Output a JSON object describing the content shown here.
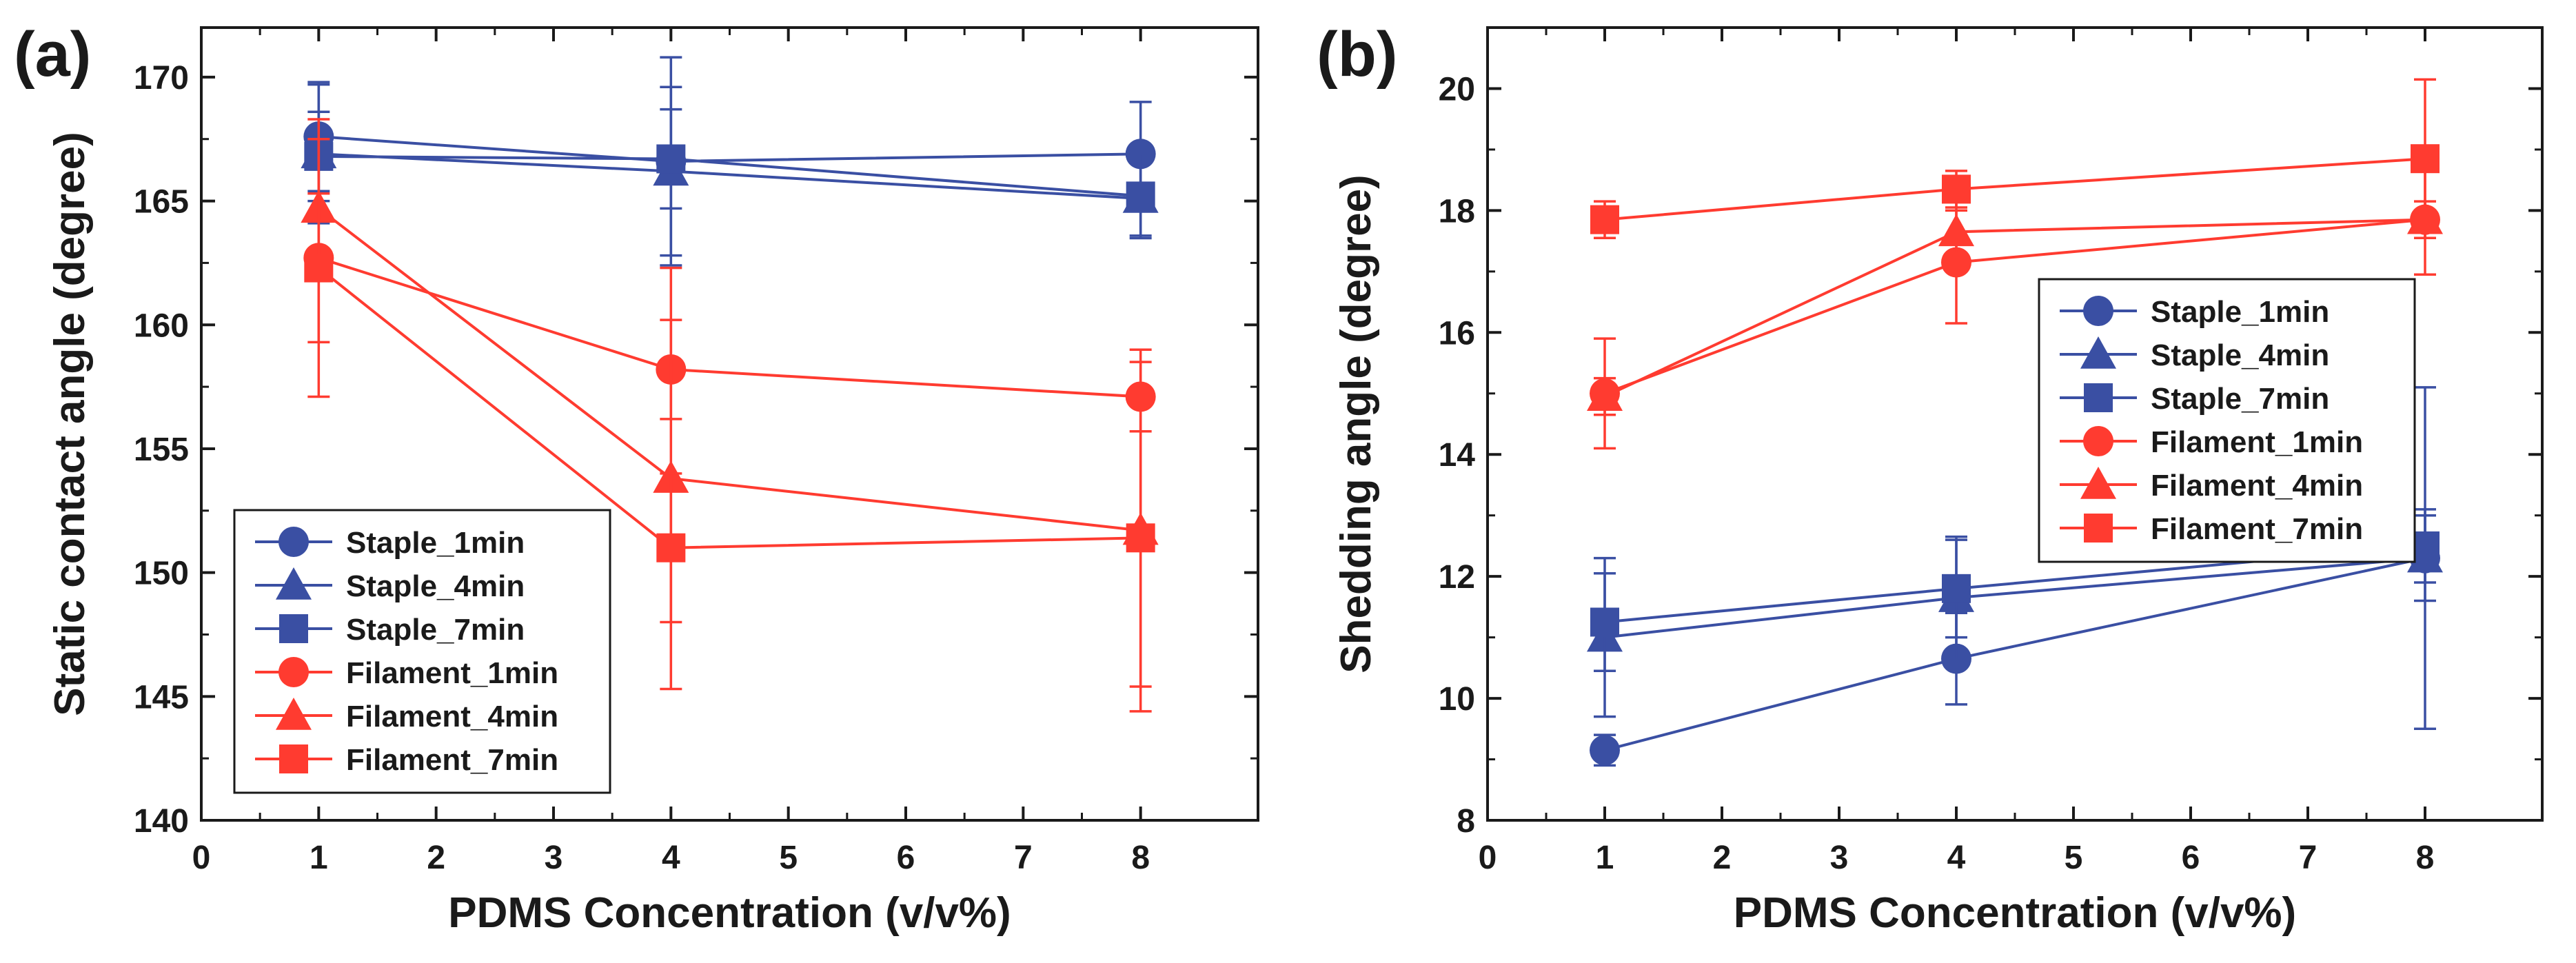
{
  "colors": {
    "staple": "#3a4fa3",
    "filament": "#ff3b30",
    "axis": "#1a1a1a",
    "errorbar": "#3a3a3a"
  },
  "chart_data": [
    {
      "type": "line",
      "panel_label": "(a)",
      "xlabel": "PDMS Concentration (v/v%)",
      "ylabel": "Static contact angle (degree)",
      "xlim": [
        0,
        9
      ],
      "ylim": [
        140,
        172
      ],
      "xticks": [
        0,
        1,
        2,
        3,
        4,
        5,
        6,
        7,
        8
      ],
      "yticks": [
        140,
        145,
        150,
        155,
        160,
        165,
        170
      ],
      "legend_position": "bottom-left",
      "x": [
        1,
        4,
        8
      ],
      "series": [
        {
          "name": "Staple_1min",
          "color": "staple",
          "marker": "circle",
          "values": [
            167.6,
            166.6,
            166.9
          ],
          "errors": [
            2.2,
            4.2,
            2.1
          ]
        },
        {
          "name": "Staple_4min",
          "color": "staple",
          "marker": "triangle",
          "values": [
            166.9,
            166.2,
            165.1
          ],
          "errors": [
            2.8,
            3.4,
            1.5
          ]
        },
        {
          "name": "Staple_7min",
          "color": "staple",
          "marker": "square",
          "values": [
            166.8,
            166.7,
            165.2
          ],
          "errors": [
            1.8,
            2.0,
            1.7
          ]
        },
        {
          "name": "Filament_1min",
          "color": "filament",
          "marker": "circle",
          "values": [
            162.7,
            158.2,
            157.1
          ],
          "errors": [
            5.6,
            2.0,
            1.4
          ]
        },
        {
          "name": "Filament_4min",
          "color": "filament",
          "marker": "triangle",
          "values": [
            164.7,
            153.8,
            151.7
          ],
          "errors": [
            2.8,
            8.5,
            7.3
          ]
        },
        {
          "name": "Filament_7min",
          "color": "filament",
          "marker": "square",
          "values": [
            162.3,
            151.0,
            151.4
          ],
          "errors": [
            3.0,
            3.0,
            6.0
          ]
        }
      ]
    },
    {
      "type": "line",
      "panel_label": "(b)",
      "xlabel": "PDMS Concentration (v/v%)",
      "ylabel": "Shedding angle (degree)",
      "xlim": [
        0,
        9
      ],
      "ylim": [
        8,
        21
      ],
      "xticks": [
        0,
        1,
        2,
        3,
        4,
        5,
        6,
        7,
        8
      ],
      "yticks": [
        8,
        10,
        12,
        14,
        16,
        18,
        20
      ],
      "legend_position": "right",
      "x": [
        1,
        4,
        8
      ],
      "series": [
        {
          "name": "Staple_1min",
          "color": "staple",
          "marker": "circle",
          "values": [
            9.15,
            10.65,
            12.3
          ],
          "errors": [
            0.25,
            0.75,
            0.7
          ]
        },
        {
          "name": "Staple_4min",
          "color": "staple",
          "marker": "triangle",
          "values": [
            11.0,
            11.65,
            12.3
          ],
          "errors": [
            1.3,
            1.0,
            2.8
          ]
        },
        {
          "name": "Staple_7min",
          "color": "staple",
          "marker": "square",
          "values": [
            11.25,
            11.8,
            12.5
          ],
          "errors": [
            0.8,
            0.8,
            0.6
          ]
        },
        {
          "name": "Filament_1min",
          "color": "filament",
          "marker": "circle",
          "values": [
            15.0,
            17.15,
            17.85
          ],
          "errors": [
            0.9,
            1.0,
            0.9
          ]
        },
        {
          "name": "Filament_4min",
          "color": "filament",
          "marker": "triangle",
          "values": [
            14.95,
            17.65,
            17.85
          ],
          "errors": [
            0.3,
            0.35,
            0.3
          ]
        },
        {
          "name": "Filament_7min",
          "color": "filament",
          "marker": "square",
          "values": [
            17.85,
            18.35,
            18.85
          ],
          "errors": [
            0.3,
            0.3,
            1.3
          ]
        }
      ]
    }
  ]
}
